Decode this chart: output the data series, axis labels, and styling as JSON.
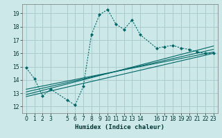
{
  "xlabel": "Humidex (Indice chaleur)",
  "bg_color": "#cce8e8",
  "grid_color": "#aacccc",
  "line_color": "#006666",
  "ylim": [
    11.5,
    19.7
  ],
  "xlim": [
    -0.5,
    23.5
  ],
  "yticks": [
    12,
    13,
    14,
    15,
    16,
    17,
    18,
    19
  ],
  "xticks": [
    0,
    1,
    2,
    3,
    5,
    6,
    7,
    8,
    9,
    10,
    11,
    12,
    13,
    14,
    16,
    17,
    18,
    19,
    20,
    21,
    22,
    23
  ],
  "main_x": [
    0,
    1,
    2,
    3,
    5,
    6,
    7,
    8,
    9,
    10,
    11,
    12,
    13,
    14,
    16,
    17,
    18,
    19,
    20,
    21,
    22,
    23
  ],
  "main_y": [
    14.9,
    14.1,
    12.8,
    13.3,
    12.5,
    12.1,
    13.5,
    17.4,
    18.9,
    19.3,
    18.2,
    17.8,
    18.5,
    17.4,
    16.4,
    16.5,
    16.6,
    16.4,
    16.3,
    16.1,
    16.0,
    16.0
  ],
  "reg_lines": [
    {
      "x": [
        0,
        23
      ],
      "y": [
        13.3,
        16.1
      ]
    },
    {
      "x": [
        0,
        23
      ],
      "y": [
        13.1,
        16.3
      ]
    },
    {
      "x": [
        0,
        23
      ],
      "y": [
        12.9,
        16.55
      ]
    },
    {
      "x": [
        0,
        23
      ],
      "y": [
        12.75,
        16.0
      ]
    }
  ]
}
